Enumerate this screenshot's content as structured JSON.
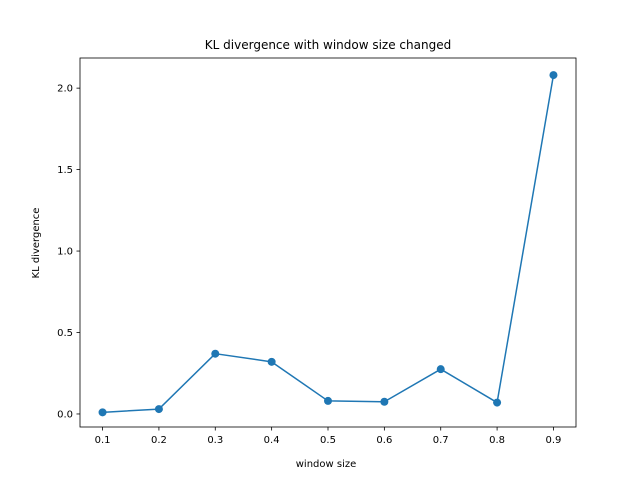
{
  "chart_data": {
    "type": "line",
    "title": "KL divergence with window size changed",
    "xlabel": "window size",
    "ylabel": "KL divergence",
    "x": [
      0.1,
      0.2,
      0.3,
      0.4,
      0.5,
      0.6,
      0.7,
      0.8,
      0.9
    ],
    "series": [
      {
        "values": [
          0.01,
          0.03,
          0.37,
          0.32,
          0.08,
          0.075,
          0.275,
          0.07,
          2.08
        ],
        "color": "#1f77b4",
        "marker": "circle"
      }
    ],
    "xlim": [
      0.06,
      0.94
    ],
    "ylim": [
      -0.08,
      2.185
    ],
    "xticks": [
      0.1,
      0.2,
      0.3,
      0.4,
      0.5,
      0.6,
      0.7,
      0.8,
      0.9
    ],
    "xtick_labels": [
      "0.1",
      "0.2",
      "0.3",
      "0.4",
      "0.5",
      "0.6",
      "0.7",
      "0.8",
      "0.9"
    ],
    "yticks": [
      0.0,
      0.5,
      1.0,
      1.5,
      2.0
    ],
    "ytick_labels": [
      "0.0",
      "0.5",
      "1.0",
      "1.5",
      "2.0"
    ],
    "grid": false,
    "legend": false
  }
}
